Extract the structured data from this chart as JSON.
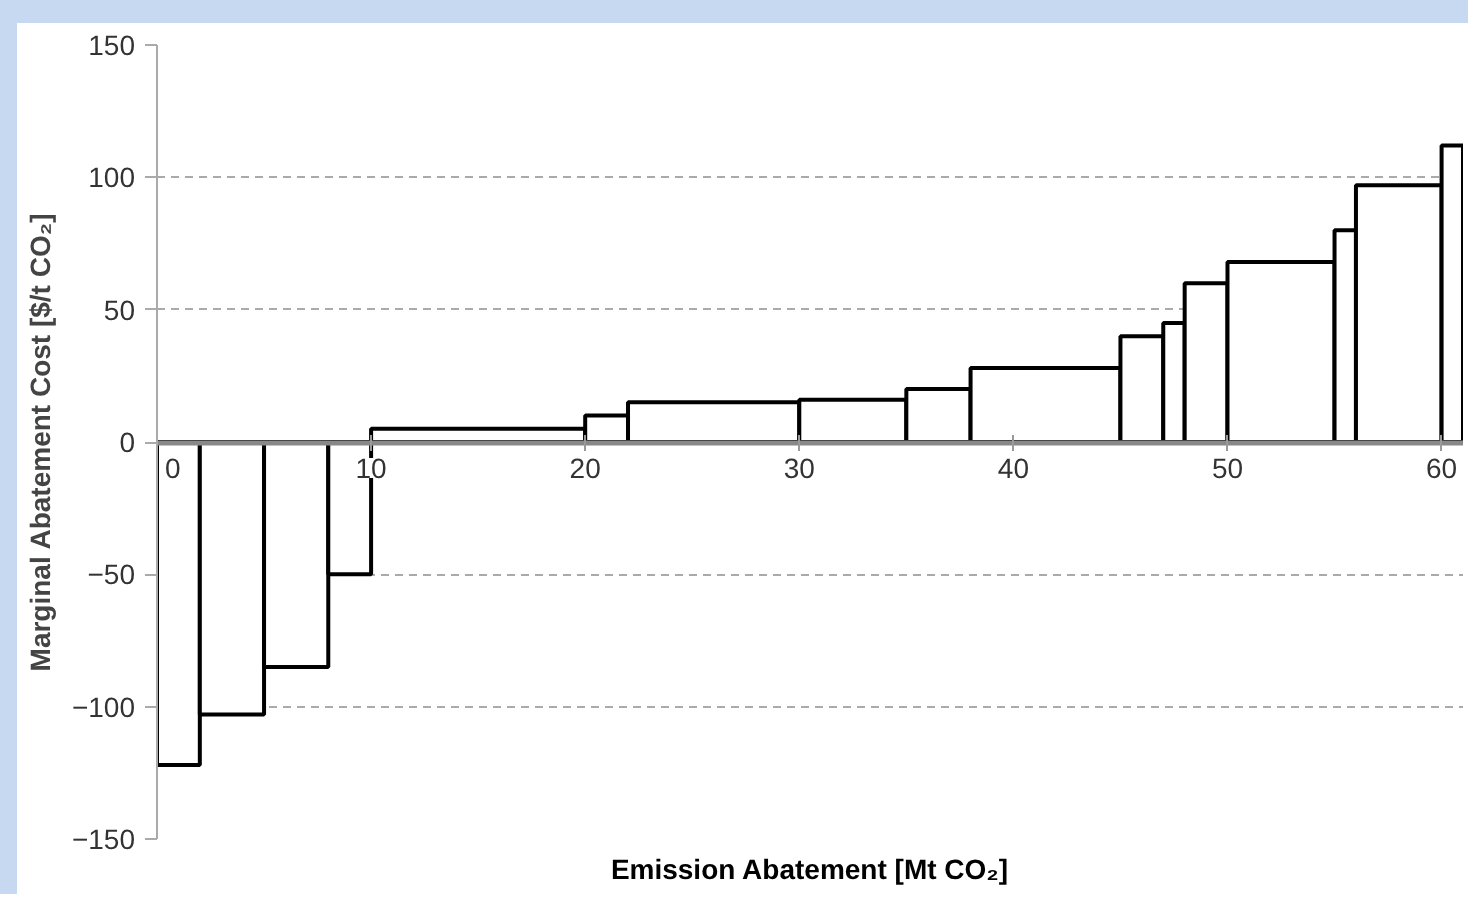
{
  "chart_data": {
    "type": "histogram",
    "xlabel": "Emission Abatement [Mt CO₂]",
    "ylabel": "Marginal Abatement Cost [$/t CO₂]",
    "bins": [
      0,
      2,
      5,
      8,
      10,
      20,
      22,
      30,
      35,
      38,
      45,
      47,
      48,
      50,
      55,
      56,
      60,
      61
    ],
    "values": [
      -122,
      -103,
      -85,
      -50,
      5,
      10,
      15,
      16,
      20,
      28,
      40,
      45,
      60,
      68,
      80,
      97,
      112
    ],
    "color": "#000000",
    "xlim": [
      0,
      61
    ],
    "xticks": [
      0,
      10,
      20,
      30,
      40,
      50,
      60
    ],
    "ylim": [
      -150,
      150
    ],
    "yticks": [
      -150,
      -100,
      -50,
      0,
      50,
      100,
      150
    ],
    "grid": "y",
    "legend": false
  }
}
